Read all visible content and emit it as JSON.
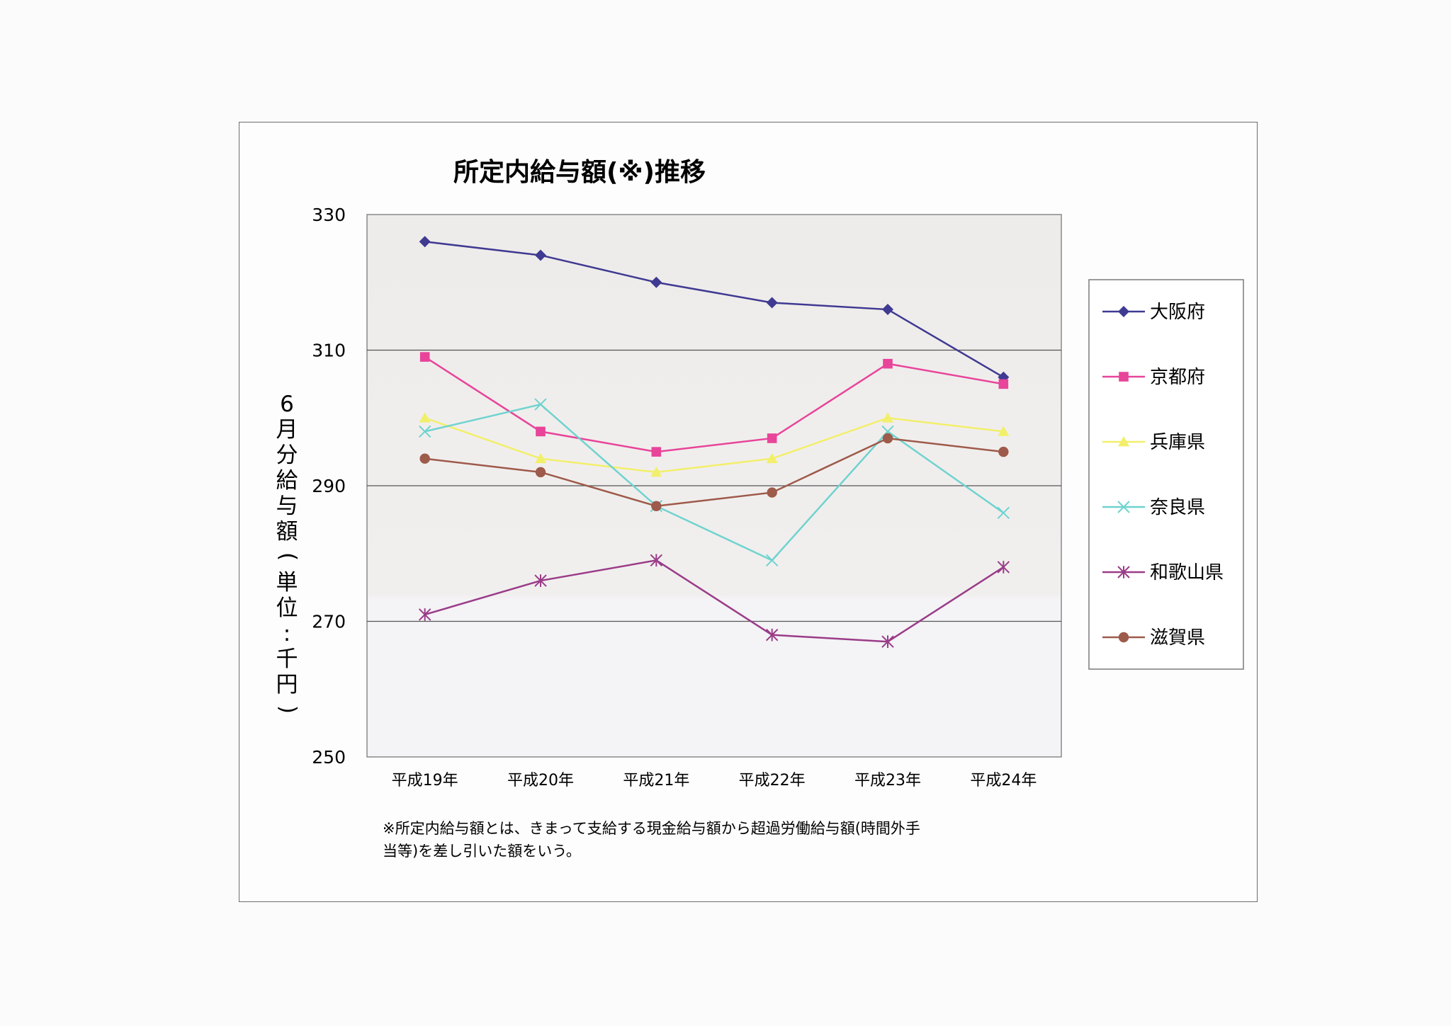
{
  "chart_data": {
    "type": "line",
    "title": "所定内給与額(※)推移",
    "ylabel": "6月分給与額(単位:千円)",
    "xlabel": "",
    "ylim": [
      250,
      330
    ],
    "yticks": [
      250,
      270,
      290,
      310,
      330
    ],
    "grid": true,
    "legend_position": "right",
    "categories": [
      "平成19年",
      "平成20年",
      "平成21年",
      "平成22年",
      "平成23年",
      "平成24年"
    ],
    "series": [
      {
        "name": "大阪府",
        "color": "#3f3a92",
        "marker": "diamond",
        "values": [
          326,
          324,
          320,
          317,
          316,
          306
        ]
      },
      {
        "name": "京都府",
        "color": "#e8449a",
        "marker": "square",
        "values": [
          309,
          298,
          295,
          297,
          308,
          305
        ]
      },
      {
        "name": "兵庫県",
        "color": "#f2ef6a",
        "marker": "triangle",
        "values": [
          300,
          294,
          292,
          294,
          300,
          298
        ]
      },
      {
        "name": "奈良県",
        "color": "#6fd3cf",
        "marker": "x",
        "values": [
          298,
          302,
          287,
          279,
          298,
          286
        ]
      },
      {
        "name": "和歌山県",
        "color": "#9a3c88",
        "marker": "asterisk",
        "values": [
          271,
          276,
          279,
          268,
          267,
          278
        ]
      },
      {
        "name": "滋賀県",
        "color": "#9e5a4a",
        "marker": "circle",
        "values": [
          294,
          292,
          287,
          289,
          297,
          295
        ]
      }
    ],
    "note": [
      "※所定内給与額とは、きまって支給する現金給与額から超過労働給与額(時間外手",
      "当等)を差し引いた額をいう。"
    ]
  }
}
